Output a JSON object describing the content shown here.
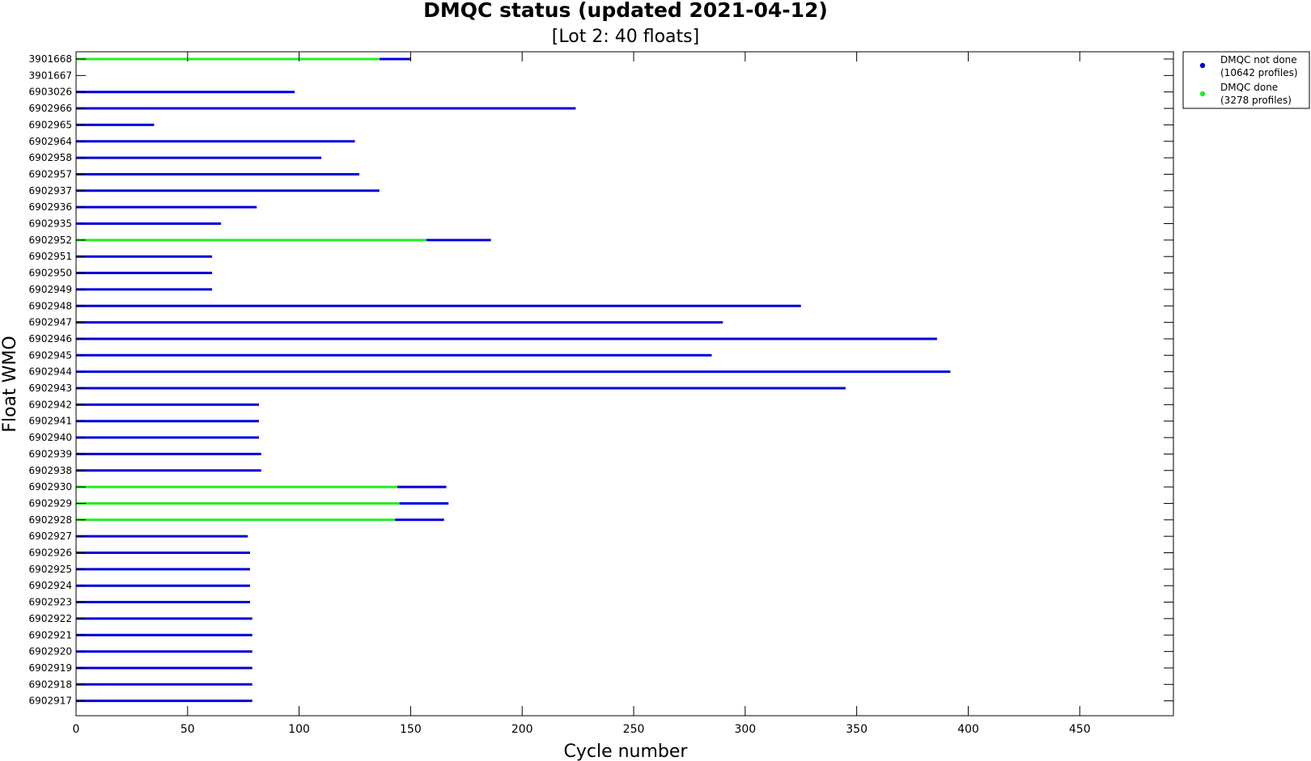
{
  "chart_data": {
    "type": "bar",
    "orientation": "horizontal",
    "title": "DMQC status (updated 2021-04-12)",
    "subtitle": "[Lot 2: 40 floats]",
    "xlabel": "Cycle number",
    "ylabel": "Float WMO",
    "xlim": [
      0,
      492
    ],
    "xticks": [
      0,
      50,
      100,
      150,
      200,
      250,
      300,
      350,
      400,
      450
    ],
    "grid": false,
    "legend_position": "outside-top-right",
    "colors": {
      "not_done": "#0000dd",
      "done": "#22ee22",
      "axis": "#000000"
    },
    "legend": [
      {
        "key": "not_done",
        "line1": "DMQC not done",
        "line2": "(10642 profiles)"
      },
      {
        "key": "done",
        "line1": "DMQC done",
        "line2": "(3278 profiles)"
      }
    ],
    "floats": [
      {
        "wmo": "3901668",
        "done": 136,
        "total": 150
      },
      {
        "wmo": "3901667",
        "done": 0,
        "total": 0
      },
      {
        "wmo": "6903026",
        "done": 0,
        "total": 98
      },
      {
        "wmo": "6902966",
        "done": 0,
        "total": 224
      },
      {
        "wmo": "6902965",
        "done": 0,
        "total": 35
      },
      {
        "wmo": "6902964",
        "done": 0,
        "total": 125
      },
      {
        "wmo": "6902958",
        "done": 0,
        "total": 110
      },
      {
        "wmo": "6902957",
        "done": 0,
        "total": 127
      },
      {
        "wmo": "6902937",
        "done": 0,
        "total": 136
      },
      {
        "wmo": "6902936",
        "done": 0,
        "total": 81
      },
      {
        "wmo": "6902935",
        "done": 0,
        "total": 65
      },
      {
        "wmo": "6902952",
        "done": 157,
        "total": 186
      },
      {
        "wmo": "6902951",
        "done": 0,
        "total": 61
      },
      {
        "wmo": "6902950",
        "done": 0,
        "total": 61
      },
      {
        "wmo": "6902949",
        "done": 0,
        "total": 61
      },
      {
        "wmo": "6902948",
        "done": 0,
        "total": 325
      },
      {
        "wmo": "6902947",
        "done": 0,
        "total": 290
      },
      {
        "wmo": "6902946",
        "done": 0,
        "total": 386
      },
      {
        "wmo": "6902945",
        "done": 0,
        "total": 285
      },
      {
        "wmo": "6902944",
        "done": 0,
        "total": 392
      },
      {
        "wmo": "6902943",
        "done": 0,
        "total": 345
      },
      {
        "wmo": "6902942",
        "done": 0,
        "total": 82
      },
      {
        "wmo": "6902941",
        "done": 0,
        "total": 82
      },
      {
        "wmo": "6902940",
        "done": 0,
        "total": 82
      },
      {
        "wmo": "6902939",
        "done": 0,
        "total": 83
      },
      {
        "wmo": "6902938",
        "done": 0,
        "total": 83
      },
      {
        "wmo": "6902930",
        "done": 144,
        "total": 166
      },
      {
        "wmo": "6902929",
        "done": 145,
        "total": 167
      },
      {
        "wmo": "6902928",
        "done": 143,
        "total": 165
      },
      {
        "wmo": "6902927",
        "done": 0,
        "total": 77
      },
      {
        "wmo": "6902926",
        "done": 0,
        "total": 78
      },
      {
        "wmo": "6902925",
        "done": 0,
        "total": 78
      },
      {
        "wmo": "6902924",
        "done": 0,
        "total": 78
      },
      {
        "wmo": "6902923",
        "done": 0,
        "total": 78
      },
      {
        "wmo": "6902922",
        "done": 0,
        "total": 79
      },
      {
        "wmo": "6902921",
        "done": 0,
        "total": 79
      },
      {
        "wmo": "6902920",
        "done": 0,
        "total": 79
      },
      {
        "wmo": "6902919",
        "done": 0,
        "total": 79
      },
      {
        "wmo": "6902918",
        "done": 0,
        "total": 79
      },
      {
        "wmo": "6902917",
        "done": 0,
        "total": 79
      }
    ]
  }
}
